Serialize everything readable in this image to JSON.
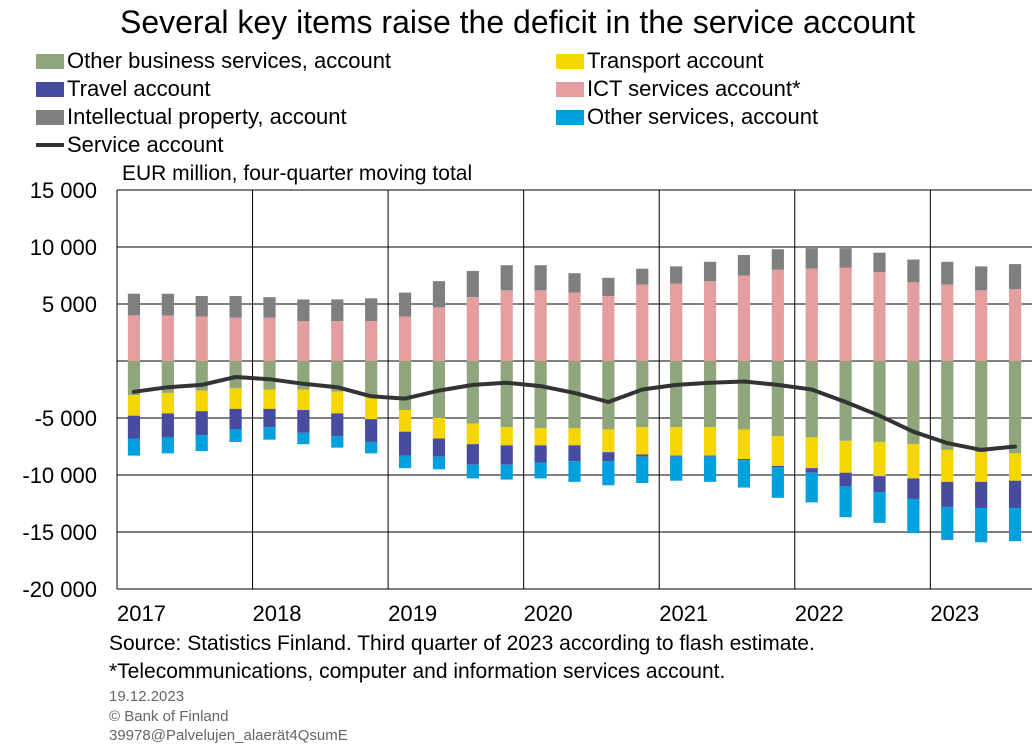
{
  "chart_data": {
    "type": "bar",
    "title": "Several key items raise the deficit in the service account",
    "ylabel": "EUR million, four-quarter moving total",
    "ylim": [
      -20000,
      15000
    ],
    "yticks": [
      15000,
      10000,
      5000,
      0,
      -5000,
      -10000,
      -15000,
      -20000
    ],
    "ytick_labels": [
      "15 000",
      "10 000",
      "5 000",
      "",
      "-5 000",
      "-10 000",
      "-15 000",
      "-20 000"
    ],
    "year_labels": [
      "2017",
      "2018",
      "2019",
      "2020",
      "2021",
      "2022",
      "2023"
    ],
    "categories": [
      "2017Q1",
      "2017Q2",
      "2017Q3",
      "2017Q4",
      "2018Q1",
      "2018Q2",
      "2018Q3",
      "2018Q4",
      "2019Q1",
      "2019Q2",
      "2019Q3",
      "2019Q4",
      "2020Q1",
      "2020Q2",
      "2020Q3",
      "2020Q4",
      "2021Q1",
      "2021Q2",
      "2021Q3",
      "2021Q4",
      "2022Q1",
      "2022Q2",
      "2022Q3",
      "2022Q4",
      "2023Q1",
      "2023Q2",
      "2023Q3"
    ],
    "grid": true,
    "legend_position": "top",
    "series": [
      {
        "name": "Other business services, account",
        "kind": "bar",
        "color": "#8fa67c",
        "values": [
          -3000,
          -2800,
          -2600,
          -2400,
          -2500,
          -2500,
          -2700,
          -3200,
          -4300,
          -5000,
          -5500,
          -5800,
          -5900,
          -5900,
          -6000,
          -5800,
          -5800,
          -5800,
          -6000,
          -6600,
          -6700,
          -7000,
          -7100,
          -7300,
          -7800,
          -8000,
          -8100
        ]
      },
      {
        "name": "Transport account",
        "kind": "bar",
        "color": "#f6d600",
        "values": [
          -1800,
          -1800,
          -1800,
          -1800,
          -1700,
          -1800,
          -1900,
          -1900,
          -1900,
          -1800,
          -1800,
          -1600,
          -1500,
          -1500,
          -2000,
          -2400,
          -2500,
          -2500,
          -2600,
          -2600,
          -2700,
          -2800,
          -3000,
          -3000,
          -2800,
          -2600,
          -2400
        ]
      },
      {
        "name": "Travel account",
        "kind": "bar",
        "color": "#474c9e",
        "values": [
          -2000,
          -2100,
          -2100,
          -1800,
          -1600,
          -2000,
          -2000,
          -2000,
          -2100,
          -1600,
          -1800,
          -1700,
          -1500,
          -1400,
          -800,
          -200,
          -100,
          -100,
          -100,
          -100,
          -400,
          -1200,
          -1400,
          -1800,
          -2200,
          -2300,
          -2400
        ]
      },
      {
        "name": "Other services, account",
        "kind": "bar",
        "color": "#009fde",
        "values": [
          -1500,
          -1400,
          -1400,
          -1100,
          -1100,
          -1000,
          -1000,
          -1000,
          -1100,
          -1100,
          -1200,
          -1300,
          -1400,
          -1800,
          -2100,
          -2300,
          -2100,
          -2200,
          -2400,
          -2700,
          -2600,
          -2700,
          -2700,
          -3000,
          -2900,
          -3000,
          -2900
        ]
      },
      {
        "name": "ICT services account*",
        "kind": "bar",
        "color": "#e49ea0",
        "values": [
          4000,
          4000,
          3900,
          3800,
          3800,
          3500,
          3500,
          3500,
          3900,
          4700,
          5600,
          6200,
          6200,
          6000,
          5700,
          6700,
          6800,
          7000,
          7500,
          8000,
          8100,
          8200,
          7800,
          6900,
          6700,
          6200,
          6300
        ]
      },
      {
        "name": "Intellectual property, account",
        "kind": "bar",
        "color": "#7f7f7f",
        "values": [
          1900,
          1900,
          1800,
          1900,
          1800,
          1900,
          1900,
          2000,
          2100,
          2300,
          2300,
          2200,
          2200,
          1700,
          1600,
          1400,
          1500,
          1700,
          1800,
          1800,
          1800,
          1700,
          1700,
          2000,
          2000,
          2100,
          2200
        ]
      },
      {
        "name": "Service account",
        "kind": "line",
        "color": "#333333",
        "values": [
          -2700,
          -2300,
          -2100,
          -1400,
          -1600,
          -2000,
          -2300,
          -3100,
          -3300,
          -2600,
          -2100,
          -1900,
          -2200,
          -2800,
          -3600,
          -2500,
          -2100,
          -1900,
          -1800,
          -2100,
          -2500,
          -3600,
          -4800,
          -6200,
          -7200,
          -7800,
          -7500
        ]
      }
    ]
  },
  "legend": {
    "left": [
      "Other business services, account",
      "Travel account",
      "Intellectual property, account",
      "Service account"
    ],
    "right": [
      "Transport account",
      "ICT services account*",
      "Other services, account"
    ]
  },
  "footer": {
    "source": "Source: Statistics Finland. Third quarter of 2023 according to flash estimate.",
    "footnote": "*Telecommunications, computer and information services account.",
    "date": "19.12.2023",
    "copyright": "© Bank of Finland",
    "code": "39978@Palvelujen_alaerät4QsumE"
  }
}
